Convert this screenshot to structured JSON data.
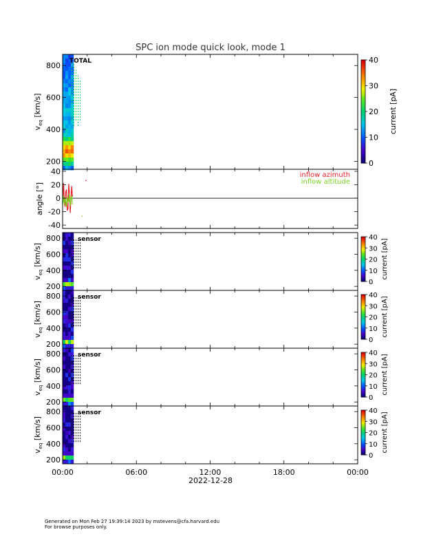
{
  "title": "SPC ion mode quick look, mode 1",
  "date_label": "2022-12-28",
  "footer": {
    "line1": "Generated on Mon Feb 27 19:39:14 2023 by mstevens@cfa.harvard.edu",
    "line2": "For browse purposes only."
  },
  "chart_data": {
    "type": "heatmap",
    "x_axis": {
      "ticks": [
        "00:00",
        "06:00",
        "12:00",
        "18:00",
        "00:00"
      ],
      "range_hours": [
        0,
        24
      ]
    },
    "colorbar": {
      "label": "current [pA]",
      "ticks": [
        0,
        10,
        20,
        30,
        40
      ],
      "range": [
        0,
        40
      ]
    },
    "panels": [
      {
        "kind": "spectrogram",
        "tag": "TOTAL",
        "ylabel": "v_eq [km/s]",
        "yticks": [
          200,
          400,
          600,
          800
        ],
        "ylim": [
          150,
          870
        ],
        "colorbar": true
      },
      {
        "kind": "line",
        "ylabel": "angle [°]",
        "yticks": [
          -40,
          -20,
          0,
          20,
          40
        ],
        "ylim": [
          -45,
          43
        ],
        "series": [
          {
            "name": "inflow azimuth",
            "color": "#e8202a"
          },
          {
            "name": "inflow altitude",
            "color": "#7ed321"
          }
        ]
      },
      {
        "kind": "spectrogram",
        "tag": "sensor",
        "ylabel": "v_eq [km/s]",
        "yticks": [
          200,
          400,
          600,
          800
        ],
        "ylim": [
          150,
          870
        ],
        "colorbar": true
      },
      {
        "kind": "spectrogram",
        "tag": "sensor",
        "ylabel": "v_eq [km/s]",
        "yticks": [
          200,
          400,
          600,
          800
        ],
        "ylim": [
          150,
          870
        ],
        "colorbar": true
      },
      {
        "kind": "spectrogram",
        "tag": "sensor",
        "ylabel": "v_eq [km/s]",
        "yticks": [
          200,
          400,
          600,
          800
        ],
        "ylim": [
          150,
          870
        ],
        "colorbar": true
      },
      {
        "kind": "spectrogram",
        "tag": "sensor",
        "ylabel": "v_eq [km/s]",
        "yticks": [
          200,
          400,
          600,
          800
        ],
        "ylim": [
          150,
          870
        ],
        "colorbar": true
      }
    ]
  }
}
